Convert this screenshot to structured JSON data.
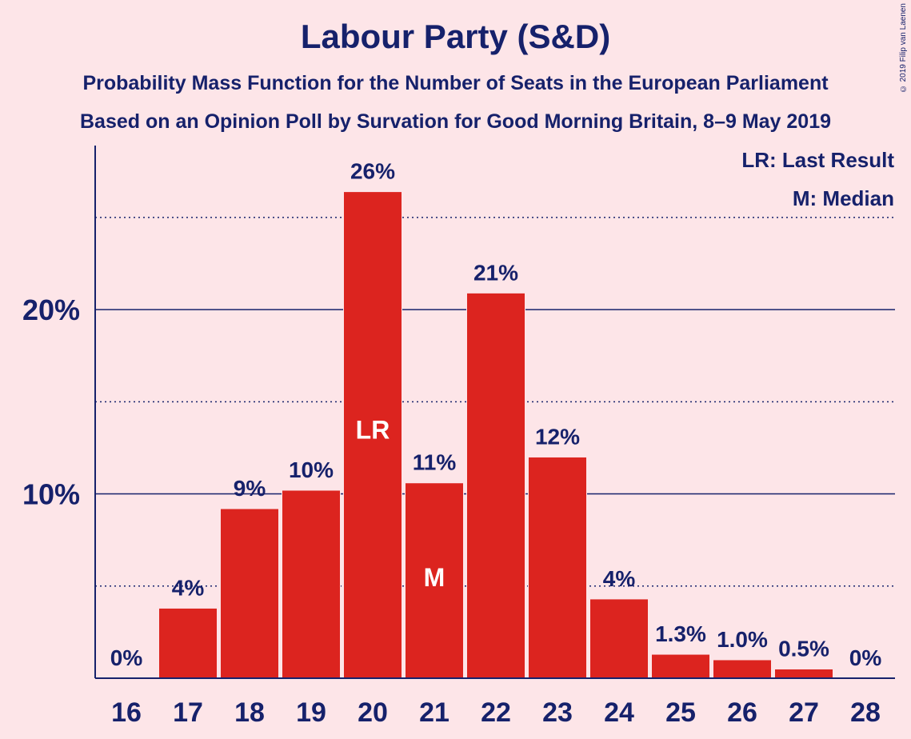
{
  "header": {
    "title": "Labour Party (S&D)",
    "subtitle1": "Probability Mass Function for the Number of Seats in the European Parliament",
    "subtitle2": "Based on an Opinion Poll by Survation for Good Morning Britain, 8–9 May 2019",
    "copyright": "© 2019 Filip van Laenen"
  },
  "legend": {
    "last_result": "LR: Last Result",
    "median": "M: Median"
  },
  "colors": {
    "bar": "#dc241f",
    "axis": "#16216b",
    "background": "#fde5e8"
  },
  "chart_data": {
    "type": "bar",
    "categories": [
      "16",
      "17",
      "18",
      "19",
      "20",
      "21",
      "22",
      "23",
      "24",
      "25",
      "26",
      "27",
      "28"
    ],
    "values": [
      0,
      3.8,
      9.2,
      10.2,
      26.4,
      10.6,
      20.9,
      12.0,
      4.3,
      1.3,
      1.0,
      0.5,
      0
    ],
    "data_labels": [
      "0%",
      "4%",
      "9%",
      "10%",
      "26%",
      "11%",
      "21%",
      "12%",
      "4%",
      "1.3%",
      "1.0%",
      "0.5%",
      "0%"
    ],
    "bar_markers": {
      "20": "LR",
      "21": "M"
    },
    "y_ticks": [
      {
        "value": 10,
        "label": "10%"
      },
      {
        "value": 20,
        "label": "20%"
      }
    ],
    "minor_gridlines": [
      5,
      15,
      25
    ],
    "ylim": [
      0,
      28.9
    ],
    "xlabel": "",
    "ylabel": "",
    "legend_position": "top-right"
  }
}
